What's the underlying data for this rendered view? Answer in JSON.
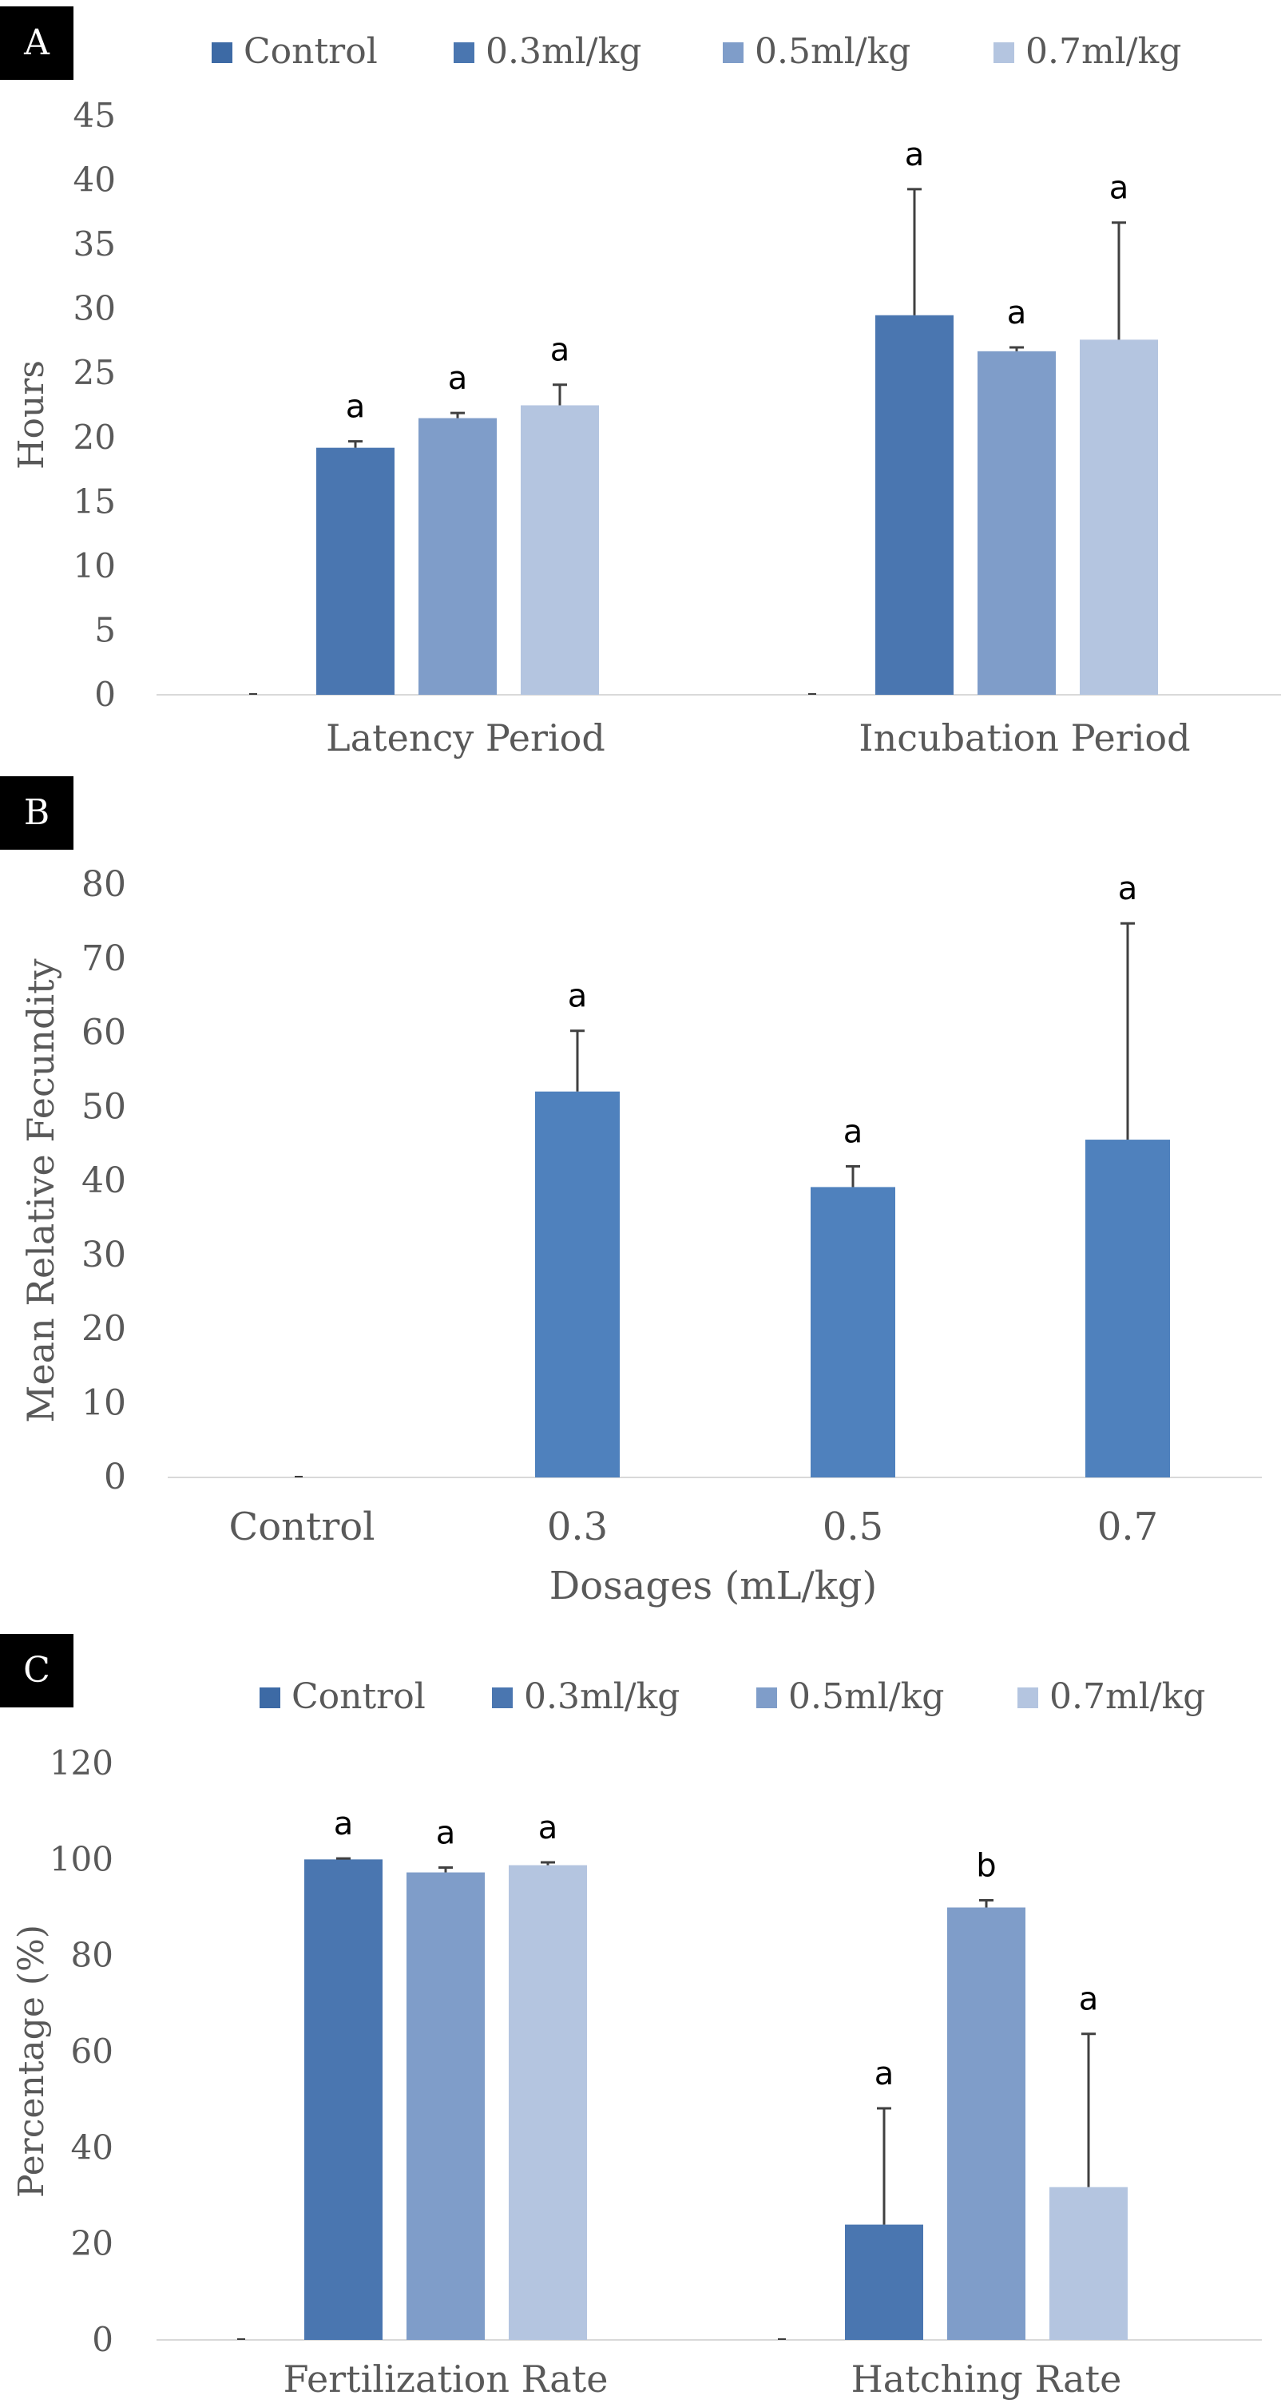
{
  "chart_data": [
    {
      "type": "bar",
      "panel_label": "A",
      "title": "",
      "xlabel": "",
      "ylabel": "Hours",
      "ylim": [
        0,
        45
      ],
      "yticks": [
        0,
        5,
        10,
        15,
        20,
        25,
        30,
        35,
        40,
        45
      ],
      "categories": [
        "Latency Period",
        "Incubation Period"
      ],
      "legend_position": "top",
      "series": [
        {
          "name": "Control",
          "color": "#3d6aa5",
          "values": [
            0,
            0
          ],
          "errors": [
            0,
            0
          ],
          "labels": [
            "",
            ""
          ]
        },
        {
          "name": "0.3ml/kg",
          "color": "#4a76b0",
          "values": [
            19.2,
            29.5
          ],
          "errors": [
            0.5,
            9.8
          ],
          "labels": [
            "a",
            "a"
          ]
        },
        {
          "name": "0.5ml/kg",
          "color": "#7f9dc9",
          "values": [
            21.5,
            26.7
          ],
          "errors": [
            0.4,
            0.3
          ],
          "labels": [
            "a",
            "a"
          ]
        },
        {
          "name": "0.7ml/kg",
          "color": "#b4c5e0",
          "values": [
            22.5,
            27.6
          ],
          "errors": [
            1.6,
            9.1
          ],
          "labels": [
            "a",
            "a"
          ]
        }
      ]
    },
    {
      "type": "bar",
      "panel_label": "B",
      "title": "",
      "xlabel": "Dosages (mL/kg)",
      "ylabel": "Mean Relative Fecundity",
      "ylim": [
        0,
        80
      ],
      "yticks": [
        0,
        10,
        20,
        30,
        40,
        50,
        60,
        70,
        80
      ],
      "categories": [
        "Control",
        "0.3",
        "0.5",
        "0.7"
      ],
      "series": [
        {
          "name": "Mean Relative Fecundity",
          "color": "#4f81bd",
          "values": [
            0,
            52.1,
            39.2,
            45.6
          ],
          "errors": [
            0,
            8.2,
            2.8,
            29.2
          ],
          "labels": [
            "",
            "a",
            "a",
            "a"
          ]
        }
      ]
    },
    {
      "type": "bar",
      "panel_label": "C",
      "title": "",
      "xlabel": "",
      "ylabel": "Percentage (%)",
      "ylim": [
        0,
        120
      ],
      "yticks": [
        0,
        20,
        40,
        60,
        80,
        100,
        120
      ],
      "categories": [
        "Fertilization Rate",
        "Hatching Rate"
      ],
      "legend_position": "top",
      "series": [
        {
          "name": "Control",
          "color": "#3d6aa5",
          "values": [
            0,
            0
          ],
          "errors": [
            0,
            0
          ],
          "labels": [
            "",
            ""
          ]
        },
        {
          "name": "0.3ml/kg",
          "color": "#4a76b0",
          "values": [
            100,
            24
          ],
          "errors": [
            0.2,
            24.2
          ],
          "labels": [
            "a",
            "a"
          ]
        },
        {
          "name": "0.5ml/kg",
          "color": "#7f9dc9",
          "values": [
            97.3,
            90
          ],
          "errors": [
            1,
            1.5
          ],
          "labels": [
            "a",
            "b"
          ]
        },
        {
          "name": "0.7ml/kg",
          "color": "#b4c5e0",
          "values": [
            98.8,
            31.8
          ],
          "errors": [
            0.6,
            31.9
          ],
          "labels": [
            "a",
            "a"
          ]
        }
      ]
    }
  ]
}
